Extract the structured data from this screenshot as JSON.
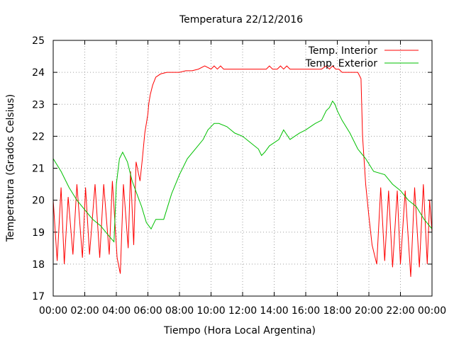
{
  "chart_data": {
    "type": "line",
    "title": "Temperatura 22/12/2016",
    "xlabel": "Tiempo (Hora Local Argentina)",
    "ylabel": "Temperatura (Grados Celsius)",
    "xlim": [
      0,
      24
    ],
    "ylim": [
      17,
      25
    ],
    "grid": true,
    "legend_position": "top-right",
    "x_tick_labels": [
      "00:00",
      "02:00",
      "04:00",
      "06:00",
      "08:00",
      "10:00",
      "12:00",
      "14:00",
      "16:00",
      "18:00",
      "20:00",
      "22:00",
      "00:00"
    ],
    "y_tick_labels": [
      "17",
      "18",
      "19",
      "20",
      "21",
      "22",
      "23",
      "24",
      "25"
    ],
    "series": [
      {
        "name": "Temp. Interior",
        "color": "#ff0000",
        "x": [
          0,
          0.25,
          0.5,
          0.7,
          0.95,
          1.25,
          1.5,
          1.85,
          2.05,
          2.3,
          2.65,
          2.95,
          3.2,
          3.55,
          3.75,
          4.05,
          4.25,
          4.45,
          4.75,
          4.9,
          5.1,
          5.25,
          5.5,
          5.65,
          5.8,
          6.0,
          6.05,
          6.15,
          6.3,
          6.5,
          6.8,
          7.2,
          7.6,
          8.0,
          8.4,
          8.8,
          9.2,
          9.6,
          10.0,
          10.2,
          10.4,
          10.6,
          10.8,
          11.0,
          12.0,
          13.0,
          13.5,
          13.7,
          13.9,
          14.2,
          14.4,
          14.6,
          14.8,
          15.0,
          16.0,
          17.0,
          17.3,
          17.5,
          17.7,
          17.9,
          18.1,
          18.3,
          18.8,
          19.3,
          19.5,
          19.6,
          19.8,
          20.0,
          20.2,
          20.5,
          20.75,
          21.0,
          21.25,
          21.5,
          21.8,
          22.0,
          22.3,
          22.65,
          22.9,
          23.2,
          23.45,
          23.7,
          23.85,
          24.0
        ],
        "values": [
          20.0,
          18.1,
          20.4,
          18.0,
          20.1,
          18.3,
          20.5,
          18.2,
          20.4,
          18.3,
          20.5,
          18.2,
          20.5,
          18.3,
          20.6,
          18.2,
          17.7,
          20.5,
          18.5,
          20.9,
          18.6,
          21.2,
          20.6,
          21.3,
          22.1,
          22.7,
          23.0,
          23.3,
          23.6,
          23.85,
          23.95,
          24.0,
          24.0,
          24.0,
          24.05,
          24.05,
          24.1,
          24.2,
          24.1,
          24.2,
          24.1,
          24.2,
          24.1,
          24.1,
          24.1,
          24.1,
          24.1,
          24.2,
          24.1,
          24.1,
          24.2,
          24.1,
          24.2,
          24.1,
          24.1,
          24.1,
          24.2,
          24.1,
          24.2,
          24.1,
          24.1,
          24.0,
          24.0,
          24.0,
          23.8,
          22.0,
          20.5,
          19.5,
          18.6,
          18.0,
          20.4,
          18.1,
          20.3,
          17.9,
          20.3,
          18.0,
          20.3,
          17.6,
          20.4,
          17.9,
          20.5,
          18.0,
          20.0,
          19.0
        ]
      },
      {
        "name": "Temp. Exterior",
        "color": "#00c000",
        "x": [
          0,
          0.5,
          1.0,
          1.5,
          2.0,
          2.5,
          3.0,
          3.5,
          3.85,
          4.0,
          4.2,
          4.4,
          4.7,
          5.0,
          5.3,
          5.6,
          5.9,
          6.2,
          6.5,
          7.0,
          7.5,
          8.0,
          8.5,
          9.0,
          9.5,
          9.8,
          10.0,
          10.2,
          10.5,
          11.0,
          11.5,
          12.0,
          12.5,
          13.0,
          13.2,
          13.4,
          13.7,
          14.0,
          14.3,
          14.6,
          15.0,
          15.3,
          15.6,
          16.0,
          16.3,
          16.6,
          17.0,
          17.3,
          17.5,
          17.7,
          17.85,
          18.0,
          18.3,
          18.8,
          19.3,
          19.8,
          20.3,
          21.0,
          21.5,
          22.0,
          22.5,
          23.0,
          23.5,
          24.0
        ],
        "values": [
          21.3,
          20.9,
          20.4,
          20.0,
          19.7,
          19.4,
          19.2,
          18.9,
          18.7,
          20.5,
          21.3,
          21.5,
          21.2,
          20.6,
          20.2,
          19.8,
          19.3,
          19.1,
          19.4,
          19.4,
          20.2,
          20.8,
          21.3,
          21.6,
          21.9,
          22.2,
          22.3,
          22.4,
          22.4,
          22.3,
          22.1,
          22.0,
          21.8,
          21.6,
          21.4,
          21.5,
          21.7,
          21.8,
          21.9,
          22.2,
          21.9,
          22.0,
          22.1,
          22.2,
          22.3,
          22.4,
          22.5,
          22.8,
          22.9,
          23.1,
          23.0,
          22.8,
          22.5,
          22.1,
          21.6,
          21.3,
          20.9,
          20.8,
          20.5,
          20.3,
          20.0,
          19.8,
          19.4,
          19.1
        ]
      }
    ]
  }
}
